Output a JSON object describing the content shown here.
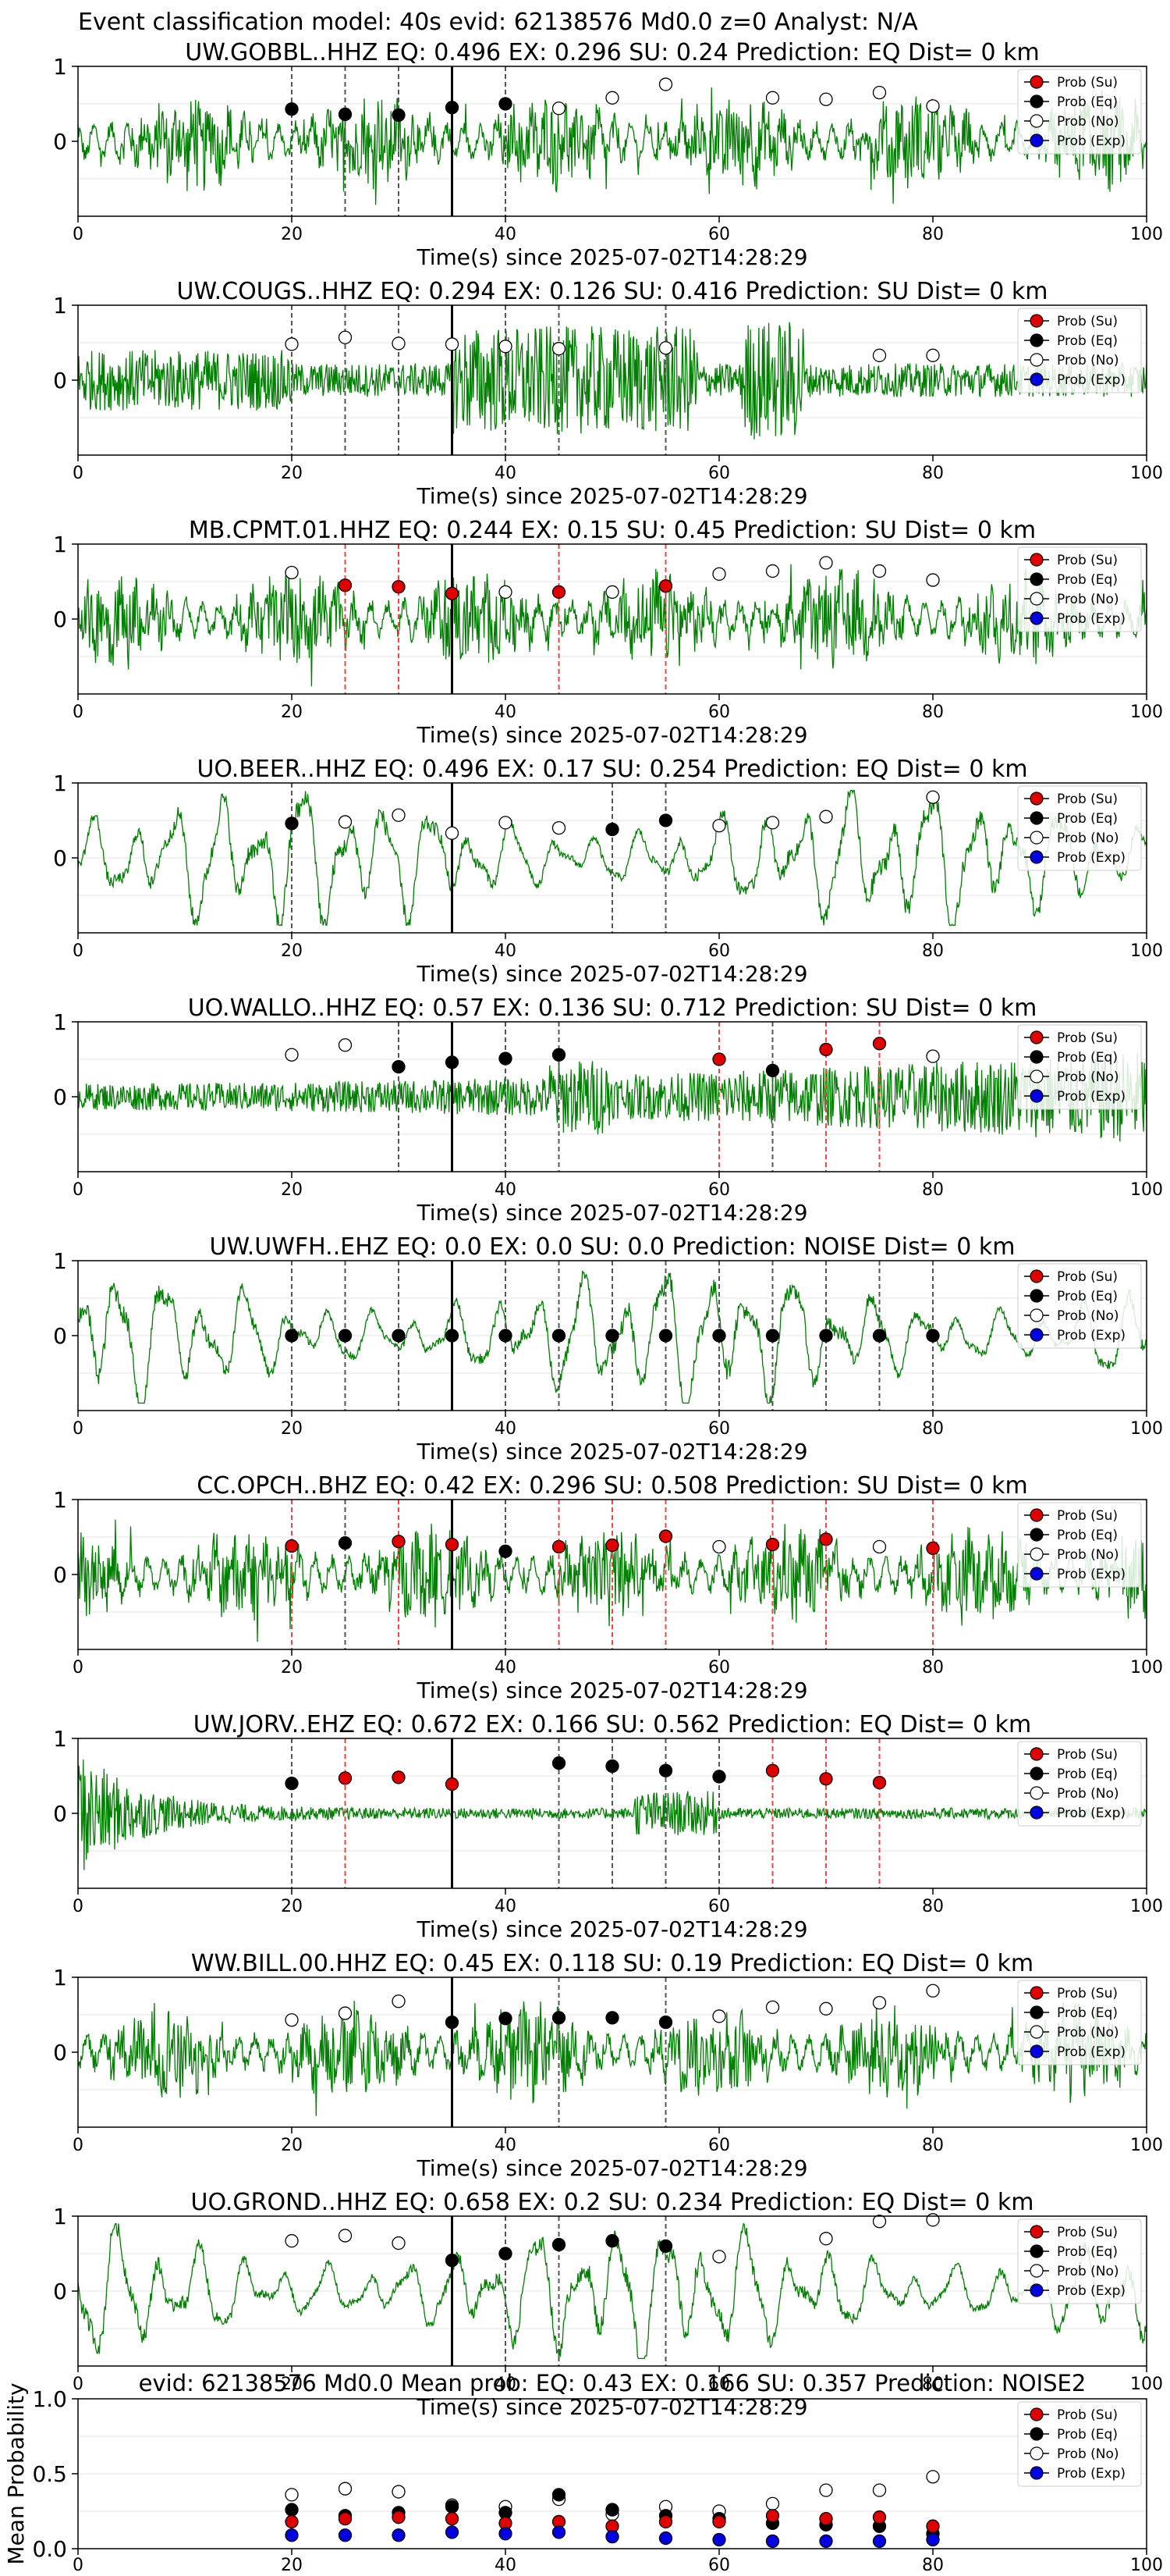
{
  "figure": {
    "suptitle": "Event classification model: 40s evid: 62138576 Md0.0 z=0 Analyst: N/A"
  },
  "legend_labels": [
    "Prob (Su)",
    "Prob (Eq)",
    "Prob (No)",
    "Prob (Exp)"
  ],
  "colors": {
    "waveform": "#008000",
    "su": "#e00000",
    "eq": "#000000",
    "no": "#ffffff",
    "exp": "#0000e0",
    "marker_su_line": "#ff4040",
    "marker_eq_line": "#555555",
    "origin_line": "#000000"
  },
  "xlabel": "Time(s) since 2025-07-02T14:28:29",
  "xticks": [
    "0",
    "20",
    "40",
    "60",
    "80",
    "100"
  ],
  "origin_time_s": 35,
  "chart_data": [
    {
      "type": "line",
      "title": "UW.GOBBL..HHZ   EQ: 0.496  EX: 0.296  SU: 0.24   Prediction: EQ    Dist= 0 km",
      "style": "noisy",
      "xlim": [
        0,
        100
      ],
      "ylim": [
        -1,
        1
      ],
      "yticks": [
        "1",
        "0"
      ],
      "xlabel": "Time(s) since 2025-07-02T14:28:29",
      "points": [
        {
          "x": 20,
          "y": 0.43,
          "c": "eq"
        },
        {
          "x": 25,
          "y": 0.36,
          "c": "eq"
        },
        {
          "x": 30,
          "y": 0.35,
          "c": "eq"
        },
        {
          "x": 35,
          "y": 0.45,
          "c": "eq"
        },
        {
          "x": 40,
          "y": 0.5,
          "c": "eq"
        },
        {
          "x": 45,
          "y": 0.44,
          "c": "no"
        },
        {
          "x": 50,
          "y": 0.58,
          "c": "no"
        },
        {
          "x": 55,
          "y": 0.76,
          "c": "no"
        },
        {
          "x": 65,
          "y": 0.58,
          "c": "no"
        },
        {
          "x": 70,
          "y": 0.56,
          "c": "no"
        },
        {
          "x": 75,
          "y": 0.65,
          "c": "no"
        },
        {
          "x": 80,
          "y": 0.47,
          "c": "no"
        }
      ],
      "vlines": [
        {
          "x": 20,
          "c": "eq"
        },
        {
          "x": 25,
          "c": "eq"
        },
        {
          "x": 30,
          "c": "eq"
        },
        {
          "x": 40,
          "c": "eq"
        }
      ]
    },
    {
      "type": "line",
      "title": "UW.COUGS..HHZ   EQ: 0.294  EX: 0.126  SU: 0.416   Prediction: SU    Dist= 0 km",
      "style": "bursts",
      "xlim": [
        0,
        100
      ],
      "ylim": [
        -1,
        1
      ],
      "yticks": [
        "1",
        "0"
      ],
      "xlabel": "Time(s) since 2025-07-02T14:28:29",
      "points": [
        {
          "x": 20,
          "y": 0.48,
          "c": "no"
        },
        {
          "x": 25,
          "y": 0.57,
          "c": "no"
        },
        {
          "x": 30,
          "y": 0.49,
          "c": "no"
        },
        {
          "x": 35,
          "y": 0.48,
          "c": "no"
        },
        {
          "x": 40,
          "y": 0.45,
          "c": "no"
        },
        {
          "x": 45,
          "y": 0.42,
          "c": "no"
        },
        {
          "x": 55,
          "y": 0.43,
          "c": "no"
        },
        {
          "x": 75,
          "y": 0.33,
          "c": "no"
        },
        {
          "x": 80,
          "y": 0.33,
          "c": "no"
        }
      ],
      "vlines": [
        {
          "x": 20,
          "c": "eq"
        },
        {
          "x": 25,
          "c": "eq"
        },
        {
          "x": 30,
          "c": "eq"
        },
        {
          "x": 40,
          "c": "eq"
        },
        {
          "x": 45,
          "c": "eq"
        },
        {
          "x": 55,
          "c": "eq"
        }
      ]
    },
    {
      "type": "line",
      "title": "MB.CPMT.01.HHZ   EQ: 0.244  EX: 0.15  SU: 0.45   Prediction: SU    Dist= 0 km",
      "style": "noisy",
      "xlim": [
        0,
        100
      ],
      "ylim": [
        -1,
        1
      ],
      "yticks": [
        "1",
        "0"
      ],
      "xlabel": "Time(s) since 2025-07-02T14:28:29",
      "points": [
        {
          "x": 20,
          "y": 0.62,
          "c": "no"
        },
        {
          "x": 25,
          "y": 0.45,
          "c": "su"
        },
        {
          "x": 30,
          "y": 0.43,
          "c": "su"
        },
        {
          "x": 35,
          "y": 0.34,
          "c": "su"
        },
        {
          "x": 40,
          "y": 0.36,
          "c": "no"
        },
        {
          "x": 45,
          "y": 0.36,
          "c": "su"
        },
        {
          "x": 50,
          "y": 0.36,
          "c": "no"
        },
        {
          "x": 55,
          "y": 0.44,
          "c": "su"
        },
        {
          "x": 60,
          "y": 0.6,
          "c": "no"
        },
        {
          "x": 65,
          "y": 0.64,
          "c": "no"
        },
        {
          "x": 70,
          "y": 0.75,
          "c": "no"
        },
        {
          "x": 75,
          "y": 0.64,
          "c": "no"
        },
        {
          "x": 80,
          "y": 0.52,
          "c": "no"
        }
      ],
      "vlines": [
        {
          "x": 25,
          "c": "su"
        },
        {
          "x": 30,
          "c": "su"
        },
        {
          "x": 45,
          "c": "su"
        },
        {
          "x": 55,
          "c": "su"
        }
      ]
    },
    {
      "type": "line",
      "title": "UO.BEER..HHZ   EQ: 0.496  EX: 0.17  SU: 0.254   Prediction: EQ    Dist= 0 km",
      "style": "smooth",
      "xlim": [
        0,
        100
      ],
      "ylim": [
        -1,
        1
      ],
      "yticks": [
        "1",
        "0"
      ],
      "xlabel": "Time(s) since 2025-07-02T14:28:29",
      "points": [
        {
          "x": 20,
          "y": 0.46,
          "c": "eq"
        },
        {
          "x": 25,
          "y": 0.48,
          "c": "no"
        },
        {
          "x": 30,
          "y": 0.57,
          "c": "no"
        },
        {
          "x": 35,
          "y": 0.33,
          "c": "no"
        },
        {
          "x": 40,
          "y": 0.47,
          "c": "no"
        },
        {
          "x": 45,
          "y": 0.4,
          "c": "no"
        },
        {
          "x": 50,
          "y": 0.38,
          "c": "eq"
        },
        {
          "x": 55,
          "y": 0.5,
          "c": "eq"
        },
        {
          "x": 60,
          "y": 0.43,
          "c": "no"
        },
        {
          "x": 65,
          "y": 0.47,
          "c": "no"
        },
        {
          "x": 70,
          "y": 0.55,
          "c": "no"
        },
        {
          "x": 80,
          "y": 0.81,
          "c": "no"
        }
      ],
      "vlines": [
        {
          "x": 20,
          "c": "eq"
        },
        {
          "x": 50,
          "c": "eq"
        },
        {
          "x": 55,
          "c": "eq"
        }
      ]
    },
    {
      "type": "line",
      "title": "UO.WALLO..HHZ   EQ: 0.57  EX: 0.136  SU: 0.712   Prediction: SU    Dist= 0 km",
      "style": "growing",
      "xlim": [
        0,
        100
      ],
      "ylim": [
        -1,
        1
      ],
      "yticks": [
        "1",
        "0"
      ],
      "xlabel": "Time(s) since 2025-07-02T14:28:29",
      "points": [
        {
          "x": 20,
          "y": 0.56,
          "c": "no"
        },
        {
          "x": 25,
          "y": 0.69,
          "c": "no"
        },
        {
          "x": 30,
          "y": 0.4,
          "c": "eq"
        },
        {
          "x": 35,
          "y": 0.46,
          "c": "eq"
        },
        {
          "x": 40,
          "y": 0.51,
          "c": "eq"
        },
        {
          "x": 45,
          "y": 0.56,
          "c": "eq"
        },
        {
          "x": 60,
          "y": 0.5,
          "c": "su"
        },
        {
          "x": 65,
          "y": 0.35,
          "c": "eq"
        },
        {
          "x": 70,
          "y": 0.63,
          "c": "su"
        },
        {
          "x": 75,
          "y": 0.71,
          "c": "su"
        },
        {
          "x": 80,
          "y": 0.54,
          "c": "no"
        }
      ],
      "vlines": [
        {
          "x": 30,
          "c": "eq"
        },
        {
          "x": 40,
          "c": "eq"
        },
        {
          "x": 45,
          "c": "eq"
        },
        {
          "x": 60,
          "c": "su"
        },
        {
          "x": 65,
          "c": "eq"
        },
        {
          "x": 70,
          "c": "su"
        },
        {
          "x": 75,
          "c": "su"
        }
      ]
    },
    {
      "type": "line",
      "title": "UW.UWFH..EHZ   EQ: 0.0  EX: 0.0  SU: 0.0   Prediction: NOISE    Dist= 0 km",
      "style": "smooth",
      "xlim": [
        0,
        100
      ],
      "ylim": [
        -1,
        1
      ],
      "yticks": [
        "1",
        "0"
      ],
      "xlabel": "Time(s) since 2025-07-02T14:28:29",
      "points": [
        {
          "x": 20,
          "y": 0.0,
          "c": "eq"
        },
        {
          "x": 25,
          "y": 0.0,
          "c": "eq"
        },
        {
          "x": 30,
          "y": 0.0,
          "c": "eq"
        },
        {
          "x": 35,
          "y": 0.0,
          "c": "eq"
        },
        {
          "x": 40,
          "y": 0.0,
          "c": "eq"
        },
        {
          "x": 45,
          "y": 0.0,
          "c": "eq"
        },
        {
          "x": 50,
          "y": 0.0,
          "c": "eq"
        },
        {
          "x": 55,
          "y": 0.0,
          "c": "eq"
        },
        {
          "x": 60,
          "y": 0.0,
          "c": "eq"
        },
        {
          "x": 65,
          "y": 0.0,
          "c": "eq"
        },
        {
          "x": 70,
          "y": 0.0,
          "c": "eq"
        },
        {
          "x": 75,
          "y": 0.0,
          "c": "eq"
        },
        {
          "x": 80,
          "y": 0.0,
          "c": "eq"
        }
      ],
      "vlines": [
        {
          "x": 20,
          "c": "eq"
        },
        {
          "x": 25,
          "c": "eq"
        },
        {
          "x": 30,
          "c": "eq"
        },
        {
          "x": 40,
          "c": "eq"
        },
        {
          "x": 45,
          "c": "eq"
        },
        {
          "x": 50,
          "c": "eq"
        },
        {
          "x": 55,
          "c": "eq"
        },
        {
          "x": 60,
          "c": "eq"
        },
        {
          "x": 65,
          "c": "eq"
        },
        {
          "x": 70,
          "c": "eq"
        },
        {
          "x": 75,
          "c": "eq"
        },
        {
          "x": 80,
          "c": "eq"
        }
      ]
    },
    {
      "type": "line",
      "title": "CC.OPCH..BHZ   EQ: 0.42  EX: 0.296  SU: 0.508   Prediction: SU    Dist= 0 km",
      "style": "noisy",
      "xlim": [
        0,
        100
      ],
      "ylim": [
        -1,
        1
      ],
      "yticks": [
        "1",
        "0"
      ],
      "xlabel": "Time(s) since 2025-07-02T14:28:29",
      "points": [
        {
          "x": 20,
          "y": 0.38,
          "c": "su"
        },
        {
          "x": 25,
          "y": 0.42,
          "c": "eq"
        },
        {
          "x": 30,
          "y": 0.44,
          "c": "su"
        },
        {
          "x": 35,
          "y": 0.4,
          "c": "su"
        },
        {
          "x": 40,
          "y": 0.31,
          "c": "eq"
        },
        {
          "x": 45,
          "y": 0.37,
          "c": "su"
        },
        {
          "x": 50,
          "y": 0.39,
          "c": "su"
        },
        {
          "x": 55,
          "y": 0.51,
          "c": "su"
        },
        {
          "x": 60,
          "y": 0.37,
          "c": "no"
        },
        {
          "x": 65,
          "y": 0.4,
          "c": "su"
        },
        {
          "x": 70,
          "y": 0.47,
          "c": "su"
        },
        {
          "x": 75,
          "y": 0.37,
          "c": "no"
        },
        {
          "x": 80,
          "y": 0.35,
          "c": "su"
        }
      ],
      "vlines": [
        {
          "x": 20,
          "c": "su"
        },
        {
          "x": 25,
          "c": "eq"
        },
        {
          "x": 30,
          "c": "su"
        },
        {
          "x": 40,
          "c": "eq"
        },
        {
          "x": 45,
          "c": "su"
        },
        {
          "x": 50,
          "c": "su"
        },
        {
          "x": 55,
          "c": "su"
        },
        {
          "x": 65,
          "c": "su"
        },
        {
          "x": 70,
          "c": "su"
        },
        {
          "x": 80,
          "c": "su"
        }
      ]
    },
    {
      "type": "line",
      "title": "UW.JORV..EHZ   EQ: 0.672  EX: 0.166  SU: 0.562   Prediction: EQ    Dist= 0 km",
      "style": "decay",
      "xlim": [
        0,
        100
      ],
      "ylim": [
        -1,
        1
      ],
      "yticks": [
        "1",
        "0"
      ],
      "xlabel": "Time(s) since 2025-07-02T14:28:29",
      "points": [
        {
          "x": 20,
          "y": 0.4,
          "c": "eq"
        },
        {
          "x": 25,
          "y": 0.47,
          "c": "su"
        },
        {
          "x": 30,
          "y": 0.48,
          "c": "su"
        },
        {
          "x": 35,
          "y": 0.39,
          "c": "su"
        },
        {
          "x": 45,
          "y": 0.67,
          "c": "eq"
        },
        {
          "x": 50,
          "y": 0.63,
          "c": "eq"
        },
        {
          "x": 55,
          "y": 0.57,
          "c": "eq"
        },
        {
          "x": 60,
          "y": 0.49,
          "c": "eq"
        },
        {
          "x": 65,
          "y": 0.57,
          "c": "su"
        },
        {
          "x": 70,
          "y": 0.46,
          "c": "su"
        },
        {
          "x": 75,
          "y": 0.41,
          "c": "su"
        }
      ],
      "vlines": [
        {
          "x": 20,
          "c": "eq"
        },
        {
          "x": 25,
          "c": "su"
        },
        {
          "x": 45,
          "c": "eq"
        },
        {
          "x": 50,
          "c": "eq"
        },
        {
          "x": 55,
          "c": "eq"
        },
        {
          "x": 60,
          "c": "eq"
        },
        {
          "x": 65,
          "c": "su"
        },
        {
          "x": 70,
          "c": "su"
        },
        {
          "x": 75,
          "c": "su"
        }
      ]
    },
    {
      "type": "line",
      "title": "WW.BILL.00.HHZ   EQ: 0.45  EX: 0.118  SU: 0.19   Prediction: EQ    Dist= 0 km",
      "style": "noisy",
      "xlim": [
        0,
        100
      ],
      "ylim": [
        -1,
        1
      ],
      "yticks": [
        "1",
        "0"
      ],
      "xlabel": "Time(s) since 2025-07-02T14:28:29",
      "points": [
        {
          "x": 20,
          "y": 0.43,
          "c": "no"
        },
        {
          "x": 25,
          "y": 0.52,
          "c": "no"
        },
        {
          "x": 30,
          "y": 0.68,
          "c": "no"
        },
        {
          "x": 35,
          "y": 0.4,
          "c": "eq"
        },
        {
          "x": 40,
          "y": 0.45,
          "c": "eq"
        },
        {
          "x": 45,
          "y": 0.46,
          "c": "eq"
        },
        {
          "x": 50,
          "y": 0.46,
          "c": "eq"
        },
        {
          "x": 55,
          "y": 0.4,
          "c": "eq"
        },
        {
          "x": 60,
          "y": 0.48,
          "c": "no"
        },
        {
          "x": 65,
          "y": 0.6,
          "c": "no"
        },
        {
          "x": 70,
          "y": 0.58,
          "c": "no"
        },
        {
          "x": 75,
          "y": 0.66,
          "c": "no"
        },
        {
          "x": 80,
          "y": 0.82,
          "c": "no"
        }
      ],
      "vlines": [
        {
          "x": 45,
          "c": "eq"
        },
        {
          "x": 55,
          "c": "eq"
        }
      ]
    },
    {
      "type": "line",
      "title": "UO.GROND..HHZ   EQ: 0.658  EX: 0.2  SU: 0.234   Prediction: EQ    Dist= 0 km",
      "style": "smooth",
      "xlim": [
        0,
        100
      ],
      "ylim": [
        -1,
        1
      ],
      "yticks": [
        "1",
        "0"
      ],
      "xlabel": "Time(s) since 2025-07-02T14:28:29",
      "points": [
        {
          "x": 20,
          "y": 0.67,
          "c": "no"
        },
        {
          "x": 25,
          "y": 0.74,
          "c": "no"
        },
        {
          "x": 30,
          "y": 0.64,
          "c": "no"
        },
        {
          "x": 35,
          "y": 0.41,
          "c": "eq"
        },
        {
          "x": 40,
          "y": 0.5,
          "c": "eq"
        },
        {
          "x": 45,
          "y": 0.62,
          "c": "eq"
        },
        {
          "x": 50,
          "y": 0.67,
          "c": "eq"
        },
        {
          "x": 55,
          "y": 0.6,
          "c": "eq"
        },
        {
          "x": 60,
          "y": 0.46,
          "c": "no"
        },
        {
          "x": 70,
          "y": 0.7,
          "c": "no"
        },
        {
          "x": 75,
          "y": 0.93,
          "c": "no"
        },
        {
          "x": 80,
          "y": 0.95,
          "c": "no"
        }
      ],
      "vlines": [
        {
          "x": 40,
          "c": "eq"
        },
        {
          "x": 45,
          "c": "eq"
        },
        {
          "x": 55,
          "c": "eq"
        }
      ]
    }
  ],
  "summary_chart": {
    "type": "scatter",
    "title": "evid: 62138576  Md0.0   Mean prob:   EQ: 0.43  EX: 0.166  SU: 0.357   Prediction: NOISE2",
    "ylabel": "Mean Probability",
    "xlim": [
      0,
      100
    ],
    "ylim": [
      0,
      1
    ],
    "yticks": [
      "0.0",
      "0.5",
      "1.0"
    ],
    "xticks": [
      "0",
      "20",
      "40",
      "60",
      "80",
      "100"
    ],
    "x": [
      20,
      25,
      30,
      35,
      40,
      45,
      50,
      55,
      60,
      65,
      70,
      75,
      80
    ],
    "series": [
      {
        "name": "Prob (No)",
        "c": "no",
        "values": [
          0.36,
          0.4,
          0.38,
          0.29,
          0.28,
          0.33,
          0.23,
          0.28,
          0.25,
          0.3,
          0.39,
          0.39,
          0.48
        ]
      },
      {
        "name": "Prob (Eq)",
        "c": "eq",
        "values": [
          0.26,
          0.22,
          0.24,
          0.28,
          0.24,
          0.36,
          0.26,
          0.22,
          0.2,
          0.17,
          0.16,
          0.15,
          0.1
        ]
      },
      {
        "name": "Prob (Su)",
        "c": "su",
        "values": [
          0.18,
          0.2,
          0.21,
          0.2,
          0.17,
          0.18,
          0.15,
          0.18,
          0.18,
          0.22,
          0.2,
          0.21,
          0.15
        ]
      },
      {
        "name": "Prob (Exp)",
        "c": "exp",
        "values": [
          0.09,
          0.09,
          0.09,
          0.11,
          0.1,
          0.11,
          0.08,
          0.07,
          0.06,
          0.05,
          0.05,
          0.05,
          0.06
        ]
      }
    ]
  }
}
